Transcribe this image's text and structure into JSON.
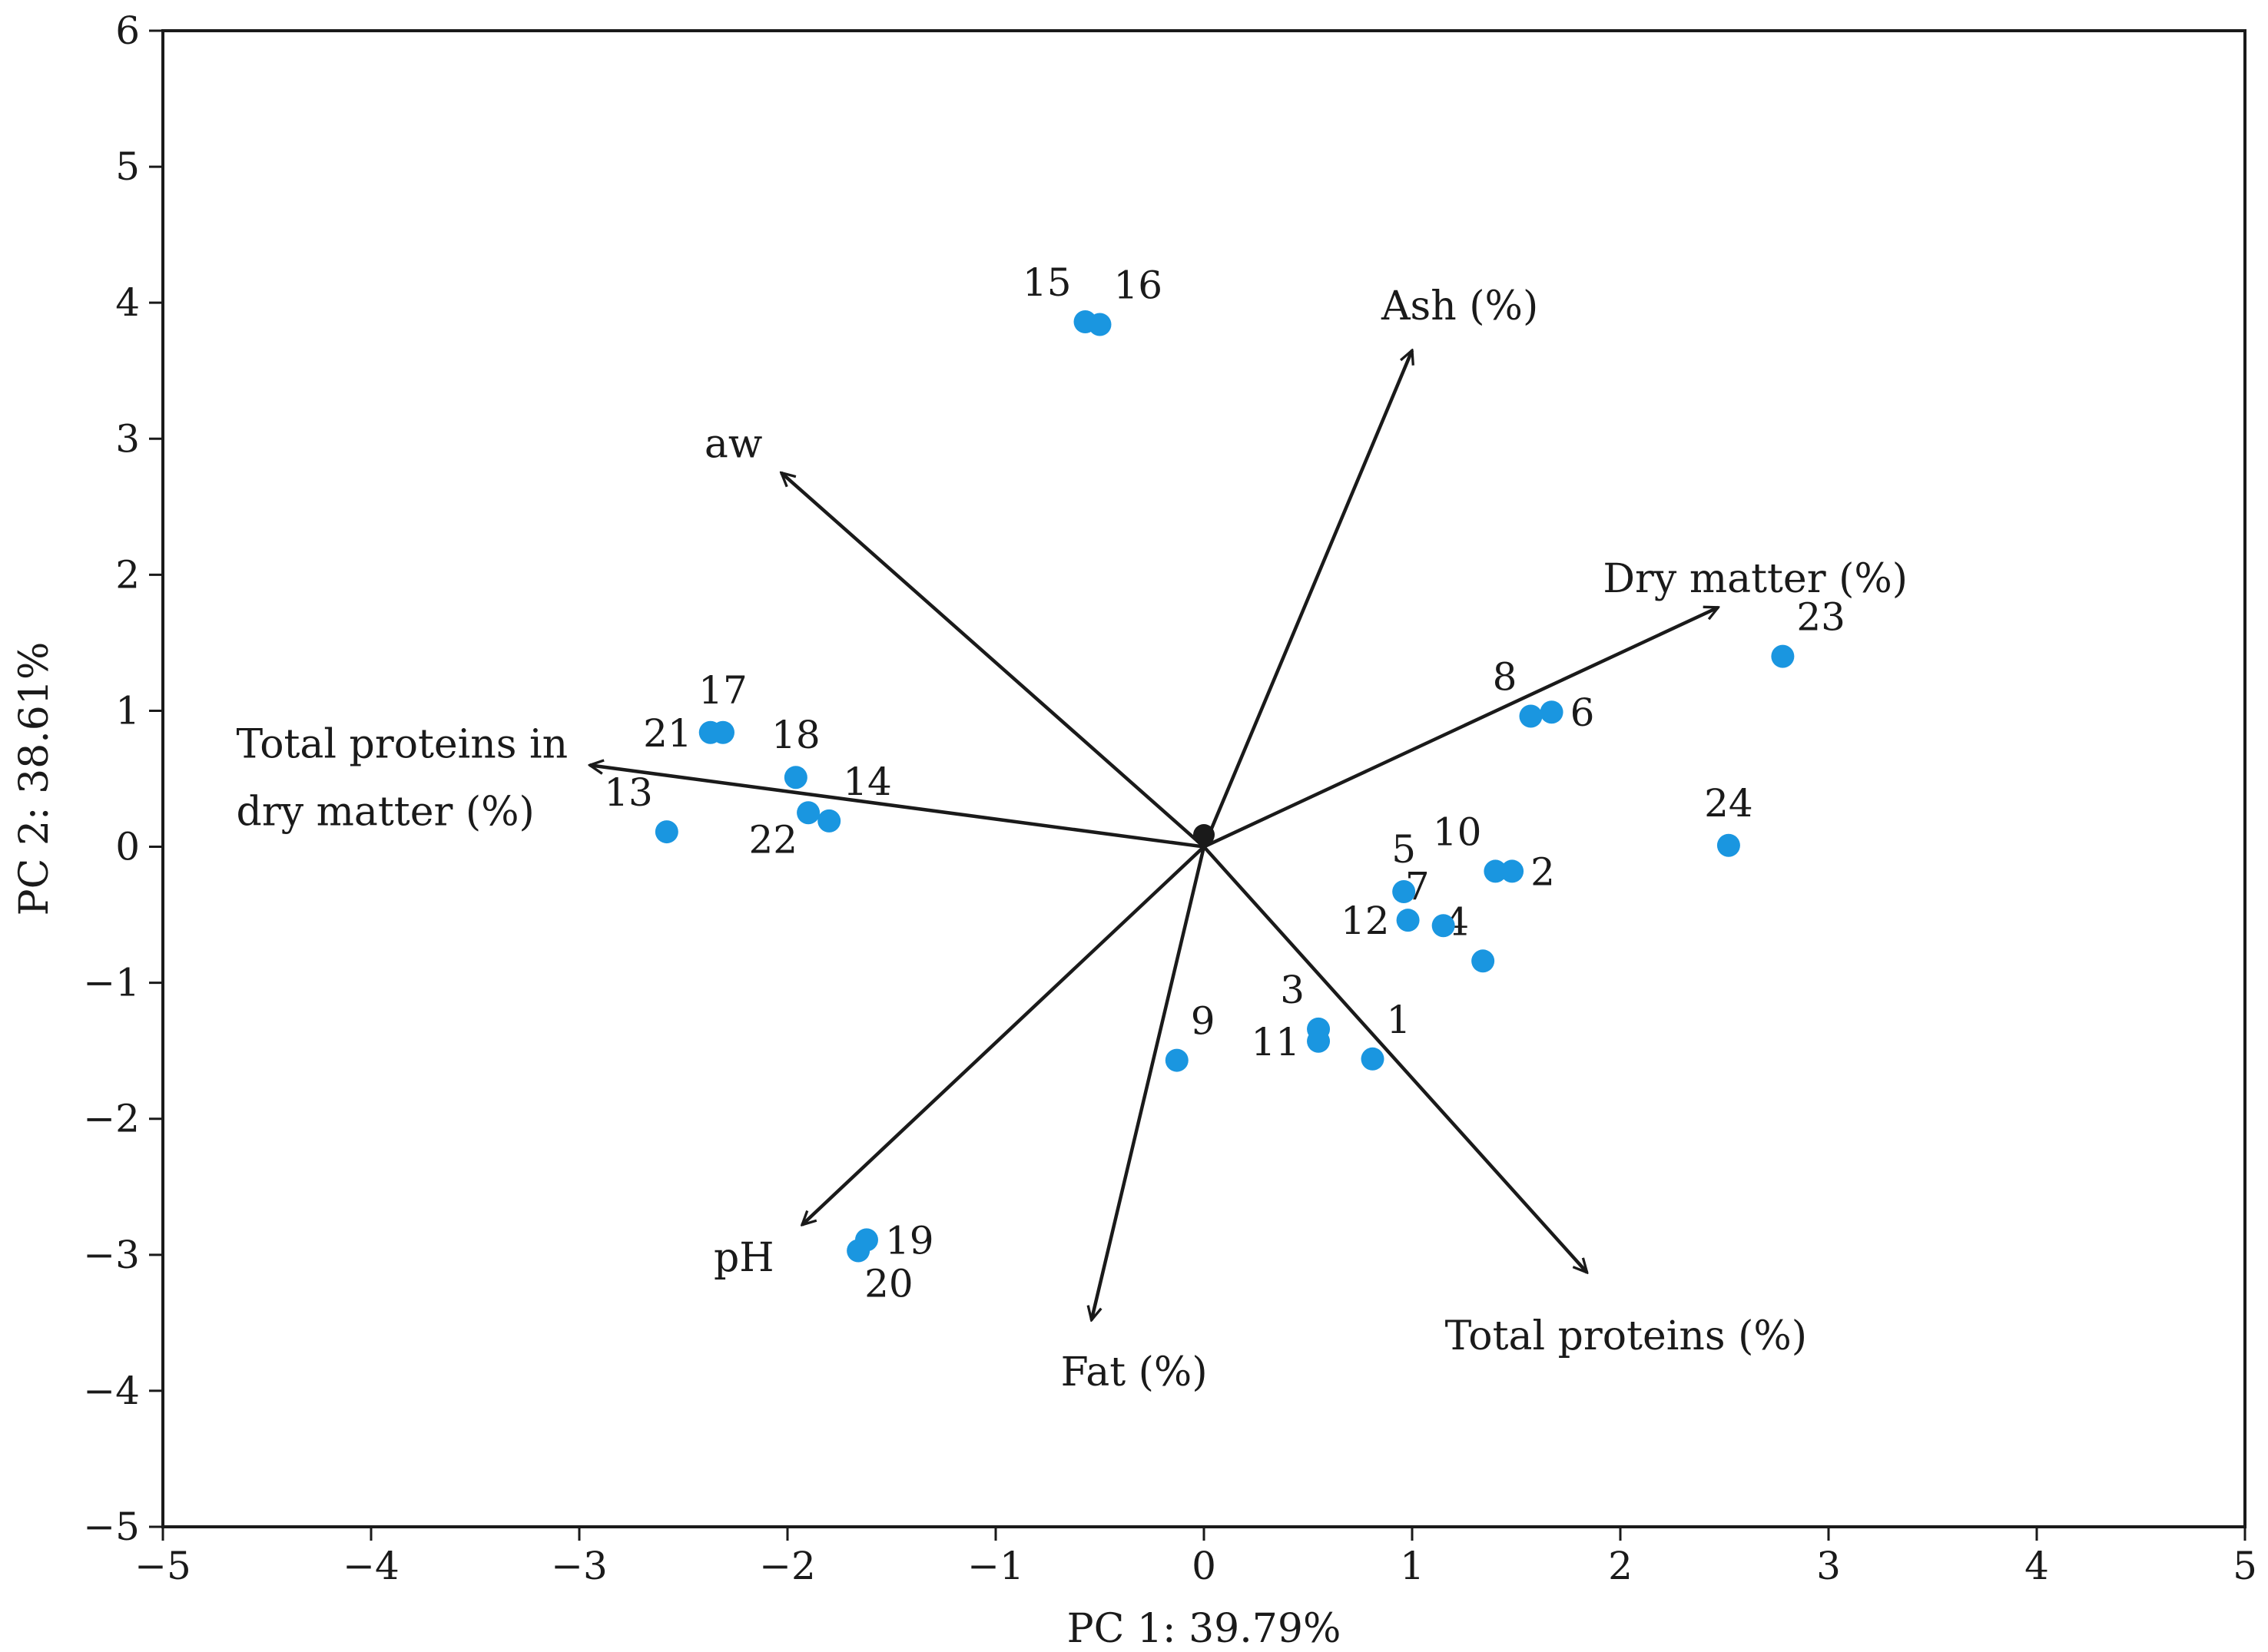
{
  "chart_data": {
    "type": "scatter",
    "subtype": "pca-biplot",
    "xlabel": "PC 1: 39.79%",
    "ylabel": "PC 2: 38.61%",
    "xlim": [
      -5,
      5
    ],
    "ylim": [
      -5,
      6
    ],
    "x_ticks": [
      -5,
      -4,
      -3,
      -2,
      -1,
      0,
      1,
      2,
      3,
      4,
      5
    ],
    "y_ticks": [
      -5,
      -4,
      -3,
      -2,
      -1,
      0,
      1,
      2,
      3,
      4,
      5,
      6
    ],
    "x_tick_labels": [
      "−5",
      "−4",
      "−3",
      "−2",
      "−1",
      "0",
      "1",
      "2",
      "3",
      "4",
      "5"
    ],
    "y_tick_labels": [
      "−5",
      "−4",
      "−3",
      "−2",
      "−1",
      "0",
      "1",
      "2",
      "3",
      "4",
      "5",
      "6"
    ],
    "grid": false,
    "point_color": "#1a96e0",
    "vector_color": "#1a1a1a",
    "points": [
      {
        "label": "1",
        "x": 0.81,
        "y": -1.56,
        "label_pos": "top-right"
      },
      {
        "label": "2",
        "x": 1.48,
        "y": -0.18,
        "label_pos": "right"
      },
      {
        "label": "3",
        "x": 0.55,
        "y": -1.34,
        "label_pos": "top-left"
      },
      {
        "label": "4",
        "x": 1.34,
        "y": -0.84,
        "label_pos": "top-left"
      },
      {
        "label": "5",
        "x": 0.96,
        "y": -0.33,
        "label_pos": "top"
      },
      {
        "label": "6",
        "x": 1.67,
        "y": 0.99,
        "label_pos": "right"
      },
      {
        "label": "7",
        "x": 1.15,
        "y": -0.58,
        "label_pos": "top-left"
      },
      {
        "label": "8",
        "x": 1.57,
        "y": 0.96,
        "label_pos": "top-left"
      },
      {
        "label": "9",
        "x": -0.13,
        "y": -1.57,
        "label_pos": "top-right"
      },
      {
        "label": "10",
        "x": 1.4,
        "y": -0.18,
        "label_pos": "top-left"
      },
      {
        "label": "11",
        "x": 0.55,
        "y": -1.43,
        "label_pos": "left"
      },
      {
        "label": "12",
        "x": 0.98,
        "y": -0.54,
        "label_pos": "left"
      },
      {
        "label": "13",
        "x": -2.58,
        "y": 0.11,
        "label_pos": "top-left"
      },
      {
        "label": "14",
        "x": -1.8,
        "y": 0.19,
        "label_pos": "top-right"
      },
      {
        "label": "15",
        "x": -0.57,
        "y": 3.86,
        "label_pos": "top-left"
      },
      {
        "label": "16",
        "x": -0.5,
        "y": 3.84,
        "label_pos": "top-right"
      },
      {
        "label": "17",
        "x": -2.31,
        "y": 0.84,
        "label_pos": "top"
      },
      {
        "label": "18",
        "x": -1.96,
        "y": 0.51,
        "label_pos": "top"
      },
      {
        "label": "19",
        "x": -1.62,
        "y": -2.89,
        "label_pos": "right"
      },
      {
        "label": "20",
        "x": -1.66,
        "y": -2.97,
        "label_pos": "bottom-right"
      },
      {
        "label": "21",
        "x": -2.37,
        "y": 0.84,
        "label_pos": "left"
      },
      {
        "label": "22",
        "x": -1.9,
        "y": 0.25,
        "label_pos": "bottom-left"
      },
      {
        "label": "23",
        "x": 2.78,
        "y": 1.4,
        "label_pos": "top-right"
      },
      {
        "label": "24",
        "x": 2.52,
        "y": 0.01,
        "label_pos": "top"
      }
    ],
    "loadings": [
      {
        "name": "Ash (%)",
        "x": 1.0,
        "y": 3.65
      },
      {
        "name": "aw",
        "x": -2.03,
        "y": 2.75
      },
      {
        "name": "Dry matter (%)",
        "x": 2.47,
        "y": 1.76
      },
      {
        "name": "Total proteins in dry matter (%)",
        "label_lines": [
          "Total proteins in",
          "dry matter (%)"
        ],
        "x": -2.95,
        "y": 0.6
      },
      {
        "name": "pH",
        "x": -1.93,
        "y": -2.78
      },
      {
        "name": "Fat (%)",
        "x": -0.54,
        "y": -3.48
      },
      {
        "name": "Total proteins (%)",
        "x": 1.84,
        "y": -3.13
      }
    ]
  }
}
